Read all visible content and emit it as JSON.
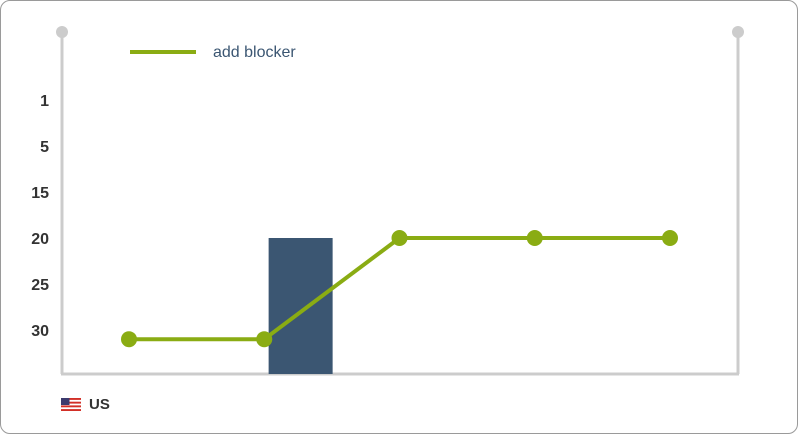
{
  "chart_data": {
    "type": "bar+line",
    "x_count": 5,
    "y_axis": {
      "ticks": [
        "1",
        "5",
        "15",
        "20",
        "25",
        "30"
      ],
      "tick_values": [
        1,
        5,
        15,
        20,
        25,
        30
      ],
      "reversed": true
    },
    "series": [
      {
        "name": "add blocker",
        "kind": "line",
        "color": "#8aac13",
        "values": [
          31,
          31,
          20,
          20,
          20
        ]
      },
      {
        "kind": "bar",
        "color": "#3b5672",
        "values": [
          null,
          20,
          null,
          null,
          null
        ]
      }
    ],
    "legend": "top-left",
    "grid": false
  },
  "footer": {
    "label": "US",
    "icon": "us-flag-icon"
  },
  "colors": {
    "axis": "#cccccc",
    "line": "#8aac13",
    "bar": "#3b5672"
  }
}
